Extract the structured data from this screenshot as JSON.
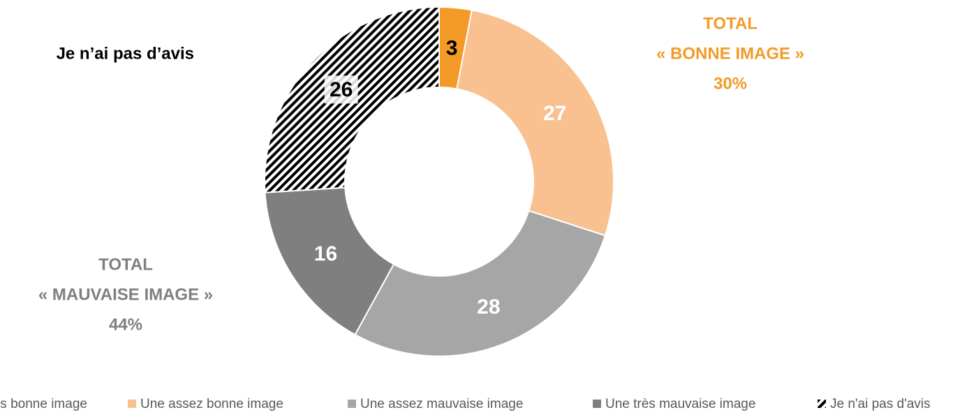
{
  "chart_data": {
    "type": "donut",
    "categories": [
      "Une très bonne image",
      "Une assez bonne image",
      "Une assez mauvaise image",
      "Une très mauvaise image",
      "Je n'ai pas d'avis"
    ],
    "values": [
      3,
      27,
      28,
      16,
      26
    ],
    "colors": [
      "#f39a27",
      "#f9c190",
      "#a6a6a6",
      "#7f7f7f",
      "#000000"
    ],
    "hatched": [
      false,
      false,
      false,
      false,
      true
    ],
    "label_colors": [
      "#000000",
      "#ffffff",
      "#ffffff",
      "#ffffff",
      "#000000"
    ],
    "annotations": [
      {
        "lines": [
          "Je n’ai pas d’avis"
        ],
        "color": "#000000"
      },
      {
        "lines": [
          "TOTAL",
          "« BONNE IMAGE »",
          "30%"
        ],
        "color": "#f39a27"
      },
      {
        "lines": [
          "TOTAL",
          "« MAUVAISE IMAGE »",
          "44%"
        ],
        "color": "#7f7f7f"
      }
    ],
    "legend": "bottom"
  }
}
